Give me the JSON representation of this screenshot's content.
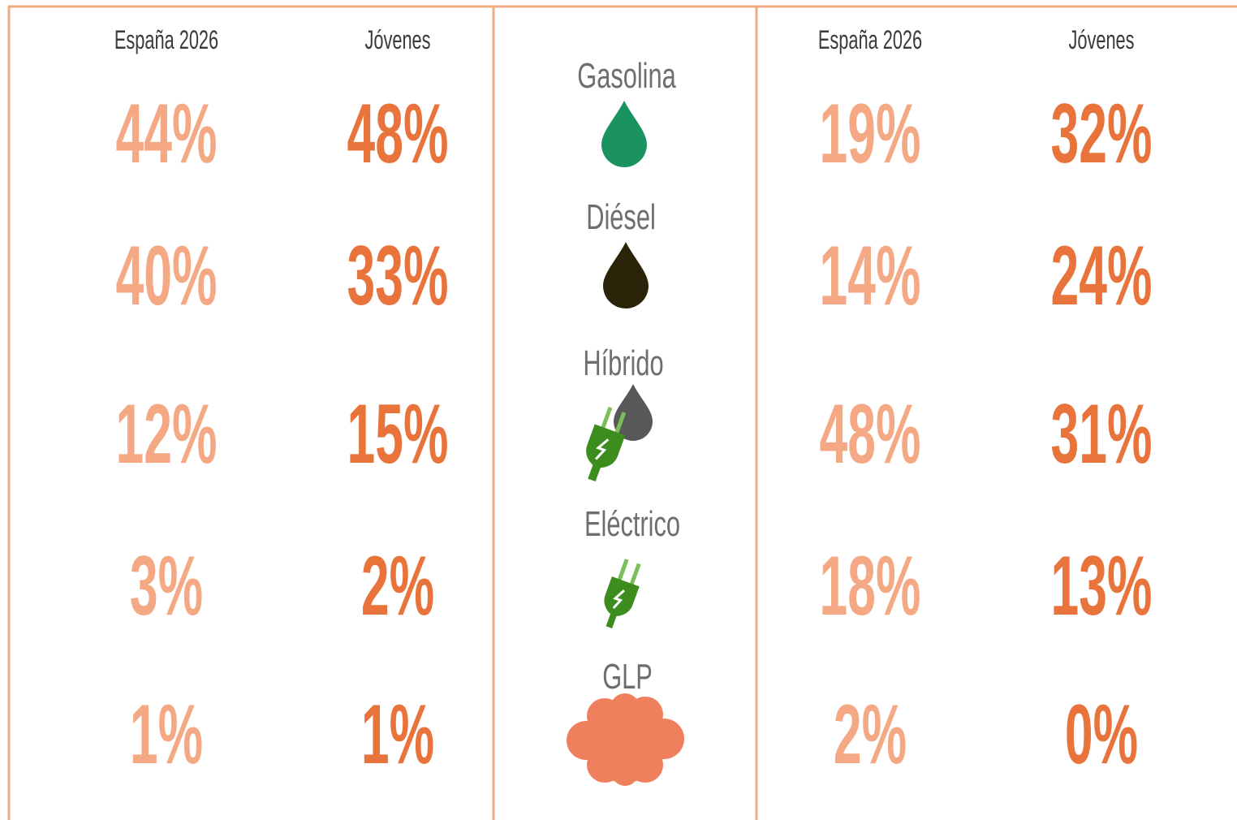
{
  "left": {
    "headers": [
      "España 2026",
      "Jóvenes"
    ],
    "rows": [
      [
        "44%",
        "48%"
      ],
      [
        "40%",
        "33%"
      ],
      [
        "12%",
        "15%"
      ],
      [
        "3%",
        "2%"
      ],
      [
        "1%",
        "1%"
      ]
    ]
  },
  "fuels": [
    "Gasolina",
    "Diésel",
    "Híbrido",
    "Eléctrico",
    "GLP"
  ],
  "right": {
    "headers": [
      "España 2026",
      "Jóvenes"
    ],
    "rows": [
      [
        "19%",
        "32%"
      ],
      [
        "14%",
        "24%"
      ],
      [
        "48%",
        "31%"
      ],
      [
        "18%",
        "13%"
      ],
      [
        "2%",
        "0%"
      ]
    ]
  }
}
